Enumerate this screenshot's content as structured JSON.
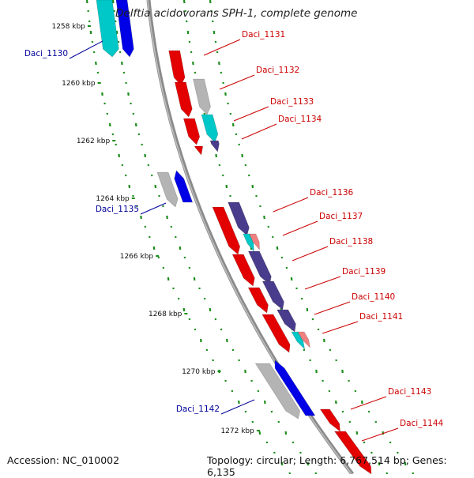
{
  "title": "Delftia acidovorans SPH-1, complete genome",
  "footer": {
    "accession": "Accession: NC_010002",
    "topology": "Topology: circular; Length: 6,767,514 bp; Genes: 6,135"
  },
  "ticks": [
    "1258 kbp",
    "1260 kbp",
    "1262 kbp",
    "1264 kbp",
    "1266 kbp",
    "1268 kbp",
    "1270 kbp",
    "1272 kbp"
  ],
  "genes_forward": [
    "Daci_1131",
    "Daci_1132",
    "Daci_1133",
    "Daci_1134",
    "Daci_1136",
    "Daci_1137",
    "Daci_1138",
    "Daci_1139",
    "Daci_1140",
    "Daci_1141",
    "Daci_1143",
    "Daci_1144"
  ],
  "genes_reverse": [
    "Daci_1130",
    "Daci_1135",
    "Daci_1142"
  ],
  "colors": {
    "forward_label": "#cc0000",
    "reverse_label": "#000099",
    "red": "#e30000",
    "blue": "#0000e6",
    "gray": "#b4b4b4",
    "cyan": "#00c8c8",
    "navy": "#4a3c8c",
    "pink": "#f08080",
    "dots": "#1a8c1a"
  }
}
